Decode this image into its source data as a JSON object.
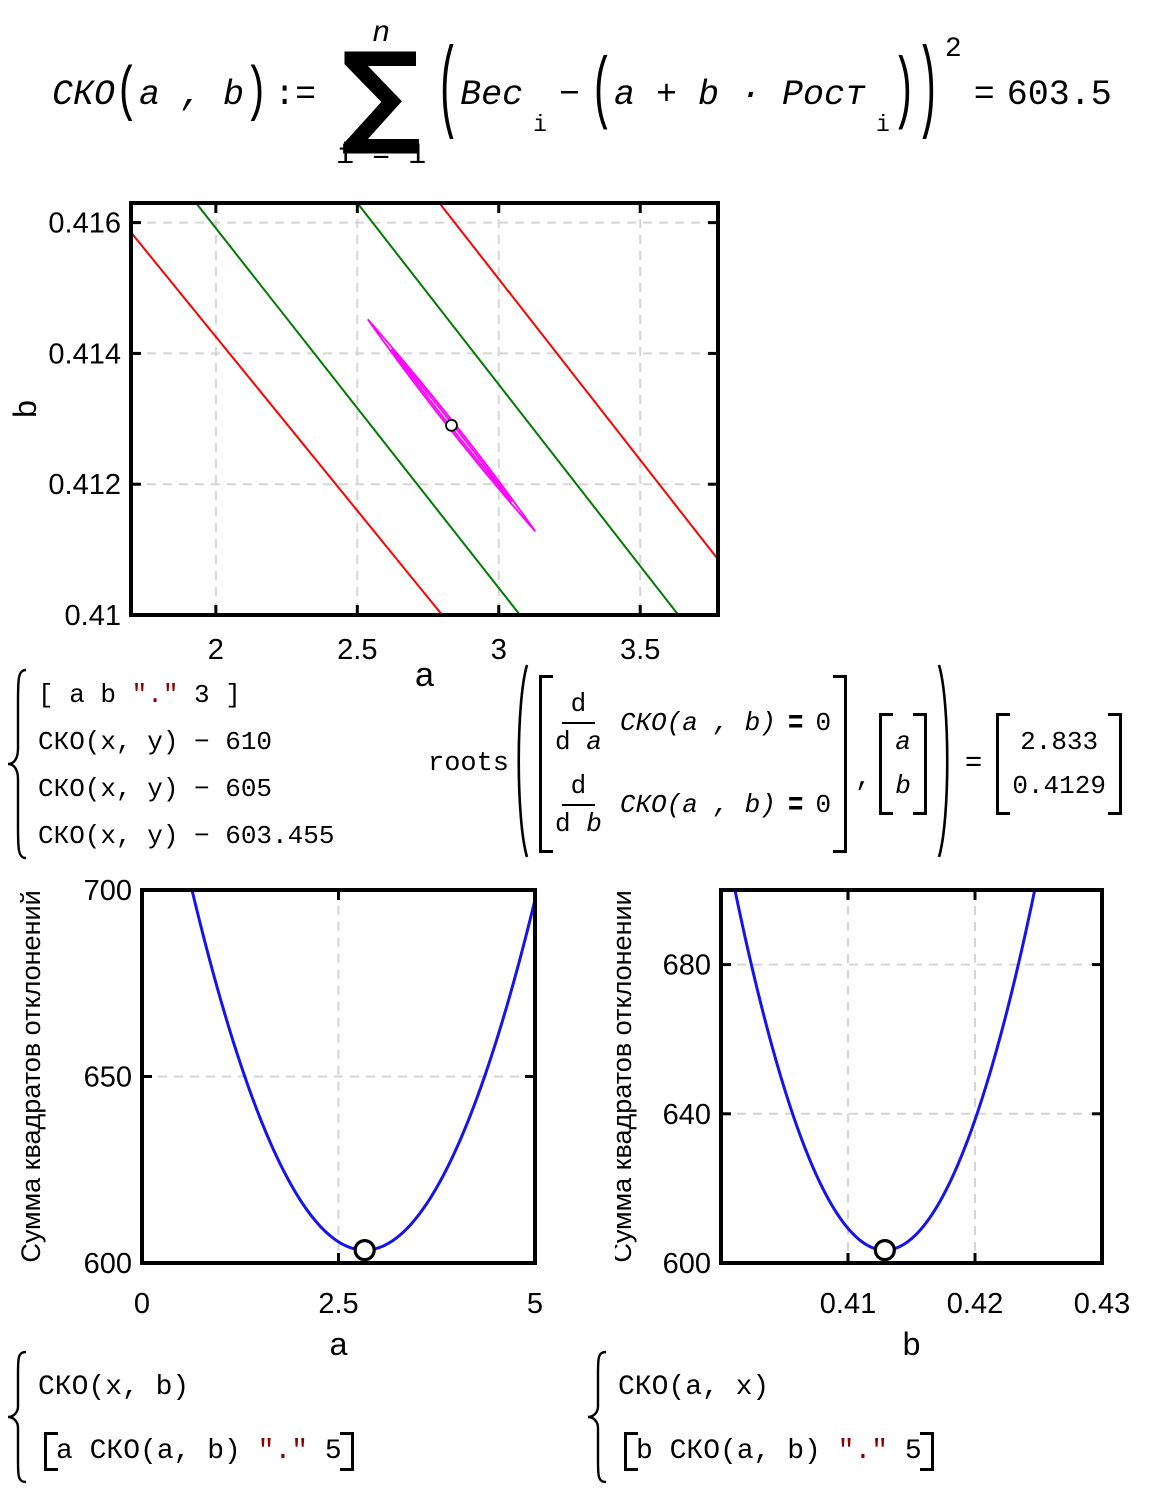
{
  "colors": {
    "curve_blue": "#1414EB",
    "contour_red": "#FF0000",
    "contour_green": "#007B00",
    "contour_magenta": "#FF00FF",
    "string_red": "#8B0000",
    "grid_gray": "#D5D5D5",
    "axis_black": "#000000"
  },
  "formula": {
    "fn": "СКО",
    "open": "(",
    "close": ")",
    "args": "a , b",
    "assign": ":=",
    "sum_upper": "n",
    "sigma": "∑",
    "sum_lower": "i = 1",
    "term1": "Вес",
    "sub": "i",
    "minus": "−",
    "inner": "a + b · Рост",
    "power": "2",
    "eq": "=",
    "value": "603.5"
  },
  "contour_legend": {
    "line1_pre": "[ a b ",
    "line1_str": "\".\"",
    "line1_post": " 3 ]",
    "line2": "СКО(x, y) − 610",
    "line3": "СКО(x, y) − 605",
    "line4": "СКО(x, y) − 603.455"
  },
  "roots": {
    "fn": "roots",
    "d": "d",
    "den_prefix": "d ",
    "var1": "a",
    "var2": "b",
    "expr": "СКО(a , b)",
    "beq": "=",
    "zero": "0",
    "comma": ",",
    "eq": "=",
    "result1": "2.833",
    "result2": "0.4129"
  },
  "bottom_left_legend": {
    "line1": "СКО(x, b)",
    "line2_pre": "a СКО(a, b) ",
    "line2_str": "\".\"",
    "line2_post": " 5"
  },
  "bottom_right_legend": {
    "line1": "СКО(a, x)",
    "line2_pre": "b СКО(a, b) ",
    "line2_str": "\".\"",
    "line2_post": " 5"
  },
  "chart_data": [
    {
      "type": "contour",
      "xlabel": "a",
      "ylabel": "b",
      "xlim": [
        1.7,
        3.775
      ],
      "ylim": [
        0.41,
        0.4163
      ],
      "xticks": {
        "values": [
          2,
          2.5,
          3,
          3.5
        ],
        "labels": [
          "2",
          "2.5",
          "3",
          "3.5"
        ]
      },
      "yticks": {
        "values": [
          0.41,
          0.412,
          0.414,
          0.416
        ],
        "labels": [
          "0.41",
          "0.412",
          "0.414",
          "0.416"
        ]
      },
      "grid": true,
      "levels": [
        {
          "value": 610,
          "color": "#FF0000",
          "segments": [
            [
              [
                1.7,
                0.41585
              ],
              [
                2.8,
                0.41
              ]
            ],
            [
              [
                2.79,
                0.4163
              ],
              [
                3.775,
                0.41085
              ]
            ]
          ]
        },
        {
          "value": 605,
          "color": "#007B00",
          "segments": [
            [
              [
                1.93,
                0.4163
              ],
              [
                3.075,
                0.41
              ]
            ],
            [
              [
                2.5,
                0.4163
              ],
              [
                3.635,
                0.41
              ]
            ]
          ]
        },
        {
          "value": 603.455,
          "color": "#FF00FF",
          "ellipse": {
            "tip1": [
              2.537,
              0.41452
            ],
            "tip2": [
              3.129,
              0.41128
            ]
          }
        }
      ],
      "minimum_marker": {
        "x": 2.833,
        "y": 0.4129
      }
    },
    {
      "type": "line",
      "xlabel": "a",
      "ylabel": "Сумма квадратов отклонений",
      "xlim": [
        0,
        5
      ],
      "ylim": [
        600,
        700
      ],
      "xticks": {
        "values": [
          0,
          2.5,
          5
        ],
        "labels": [
          "0",
          "2.5",
          "5"
        ]
      },
      "yticks": {
        "values": [
          600,
          650,
          700
        ],
        "labels": [
          "600",
          "650",
          "700"
        ]
      },
      "grid": true,
      "series": [
        {
          "name": "СКО(x, b)",
          "color": "#1414EB",
          "parabola": {
            "vertex": [
              2.833,
              603.455
            ],
            "k": 20
          }
        }
      ],
      "marker": {
        "x": 2.833,
        "y": 603.455
      }
    },
    {
      "type": "line",
      "xlabel": "b",
      "ylabel": "Сумма квадратов отклонений",
      "xlim": [
        0.4,
        0.43
      ],
      "ylim": [
        600,
        700
      ],
      "xticks": {
        "values": [
          0.41,
          0.42,
          0.43
        ],
        "labels": [
          "0.41",
          "0.42",
          "0.43"
        ]
      },
      "yticks": {
        "values": [
          600,
          640,
          680
        ],
        "labels": [
          "600",
          "640",
          "680"
        ]
      },
      "grid": true,
      "series": [
        {
          "name": "СКО(a, x)",
          "color": "#1414EB",
          "parabola": {
            "vertex": [
              0.4129,
              603.455
            ],
            "k": 693000
          }
        }
      ],
      "marker": {
        "x": 0.4129,
        "y": 603.455
      }
    }
  ]
}
